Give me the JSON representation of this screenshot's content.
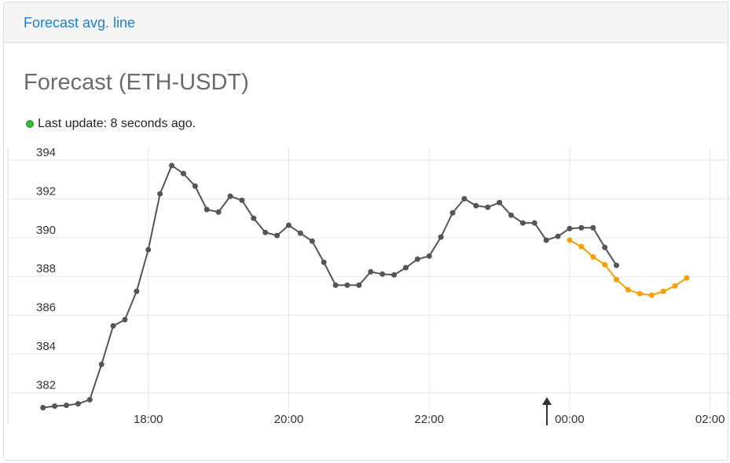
{
  "header": {
    "tab": "Forecast avg. line"
  },
  "title": "Forecast (ETH-USDT)",
  "status": "Last update: 8 seconds ago.",
  "chart_data": {
    "type": "line",
    "x": [
      "16:30",
      "16:40",
      "16:50",
      "17:00",
      "17:10",
      "17:20",
      "17:30",
      "17:40",
      "17:50",
      "18:00",
      "18:10",
      "18:20",
      "18:30",
      "18:40",
      "18:50",
      "19:00",
      "19:10",
      "19:20",
      "19:30",
      "19:40",
      "19:50",
      "20:00",
      "20:10",
      "20:20",
      "20:30",
      "20:40",
      "20:50",
      "21:00",
      "21:10",
      "21:20",
      "21:30",
      "21:40",
      "21:50",
      "22:00",
      "22:10",
      "22:20",
      "22:30",
      "22:40",
      "22:50",
      "23:00",
      "23:10",
      "23:20",
      "23:30",
      "23:40",
      "23:50",
      "00:00",
      "00:10",
      "00:20",
      "00:30",
      "00:40",
      "00:50",
      "01:00",
      "01:10",
      "01:20",
      "01:30",
      "01:40"
    ],
    "series": [
      {
        "color": "#555555",
        "values": [
          381.23,
          381.31,
          381.35,
          381.43,
          381.64,
          383.46,
          385.45,
          385.77,
          387.23,
          389.38,
          392.26,
          393.72,
          393.31,
          392.66,
          391.45,
          391.32,
          392.14,
          391.93,
          391.0,
          390.27,
          390.11,
          390.64,
          390.23,
          389.82,
          388.73,
          387.55,
          387.55,
          387.55,
          388.24,
          388.12,
          388.08,
          388.45,
          388.89,
          389.05,
          390.03,
          391.28,
          392.01,
          391.65,
          391.57,
          391.81,
          391.16,
          390.76,
          390.76,
          389.87,
          390.07,
          390.47,
          390.51,
          390.51,
          389.5,
          388.57,
          null,
          null,
          null,
          null,
          null,
          null
        ]
      },
      {
        "color": "#f5a000",
        "values": [
          null,
          null,
          null,
          null,
          null,
          null,
          null,
          null,
          null,
          null,
          null,
          null,
          null,
          null,
          null,
          null,
          null,
          null,
          null,
          null,
          null,
          null,
          null,
          null,
          null,
          null,
          null,
          null,
          null,
          null,
          null,
          null,
          null,
          null,
          null,
          null,
          null,
          null,
          null,
          null,
          null,
          null,
          null,
          null,
          null,
          389.87,
          389.54,
          389.01,
          388.61,
          387.84,
          387.31,
          387.11,
          387.03,
          387.23,
          387.51,
          387.92
        ]
      }
    ],
    "xlim": [
      "16:00",
      "02:17"
    ],
    "xticks": [
      "18:00",
      "20:00",
      "22:00",
      "00:00",
      "02:00"
    ],
    "ylim": [
      380.4,
      394.65
    ],
    "yticks": [
      382,
      384,
      386,
      388,
      390,
      392,
      394
    ],
    "grid": true
  }
}
